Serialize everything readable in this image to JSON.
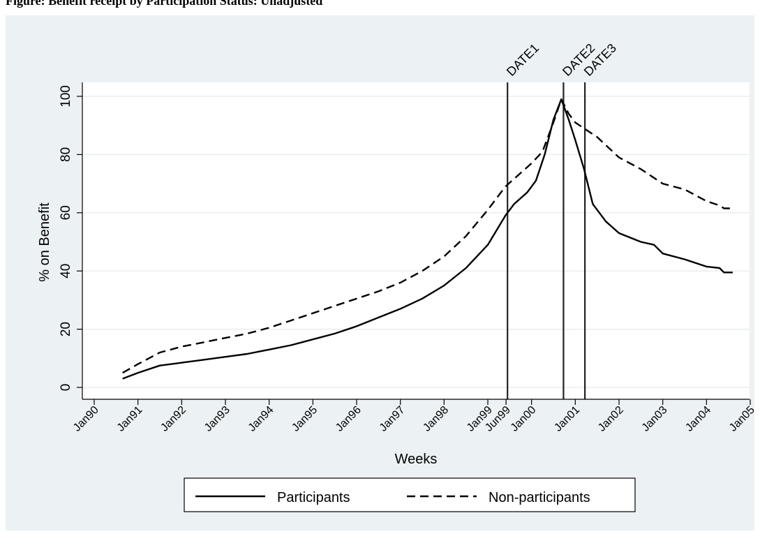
{
  "caption": "Figure: Benefit receipt by Participation Status: Unadjusted",
  "chart_data": {
    "type": "line",
    "title": "",
    "xlabel": "Weeks",
    "ylabel": "% on Benefit",
    "ylim": [
      0,
      100
    ],
    "xlim": [
      1990.0,
      2005.0
    ],
    "yticks": [
      0,
      20,
      40,
      60,
      80,
      100
    ],
    "grid": true,
    "legend_position": "bottom",
    "xticks": [
      {
        "x": 1990.0,
        "label": "Jan90"
      },
      {
        "x": 1991.0,
        "label": "Jan91"
      },
      {
        "x": 1992.0,
        "label": "Jan92"
      },
      {
        "x": 1993.0,
        "label": "Jan93"
      },
      {
        "x": 1994.0,
        "label": "Jan94"
      },
      {
        "x": 1995.0,
        "label": "Jan95"
      },
      {
        "x": 1996.0,
        "label": "Jan96"
      },
      {
        "x": 1997.0,
        "label": "Jan97"
      },
      {
        "x": 1998.0,
        "label": "Jan98"
      },
      {
        "x": 1999.0,
        "label": "Jan99"
      },
      {
        "x": 1999.4167,
        "label": "Jun99"
      },
      {
        "x": 2000.0,
        "label": "Jan00"
      },
      {
        "x": 2001.0,
        "label": "Jan01"
      },
      {
        "x": 2002.0,
        "label": "Jan02"
      },
      {
        "x": 2003.0,
        "label": "Jan03"
      },
      {
        "x": 2004.0,
        "label": "Jan04"
      },
      {
        "x": 2005.0,
        "label": "Jan05"
      }
    ],
    "vlines": [
      {
        "x": 1999.45,
        "label": "DATE1"
      },
      {
        "x": 2000.73,
        "label": "DATE2"
      },
      {
        "x": 2001.22,
        "label": "DATE3"
      }
    ],
    "series": [
      {
        "name": "Participants",
        "style": "solid",
        "color": "#000000",
        "points": [
          [
            1990.65,
            3
          ],
          [
            1991.0,
            5
          ],
          [
            1991.5,
            7.5
          ],
          [
            1992.0,
            8.5
          ],
          [
            1992.5,
            9.5
          ],
          [
            1993.0,
            10.5
          ],
          [
            1993.5,
            11.5
          ],
          [
            1994.0,
            13
          ],
          [
            1994.5,
            14.5
          ],
          [
            1995.0,
            16.5
          ],
          [
            1995.5,
            18.5
          ],
          [
            1996.0,
            21
          ],
          [
            1996.5,
            24
          ],
          [
            1997.0,
            27
          ],
          [
            1997.5,
            30.5
          ],
          [
            1998.0,
            35
          ],
          [
            1998.5,
            41
          ],
          [
            1999.0,
            49
          ],
          [
            1999.4,
            59
          ],
          [
            1999.6,
            63
          ],
          [
            1999.9,
            67
          ],
          [
            2000.1,
            71
          ],
          [
            2000.3,
            80
          ],
          [
            2000.5,
            92
          ],
          [
            2000.68,
            99
          ],
          [
            2000.85,
            92
          ],
          [
            2001.0,
            85
          ],
          [
            2001.2,
            75
          ],
          [
            2001.4,
            63
          ],
          [
            2001.7,
            57
          ],
          [
            2002.0,
            53
          ],
          [
            2002.5,
            50
          ],
          [
            2002.8,
            49
          ],
          [
            2003.0,
            46
          ],
          [
            2003.5,
            44
          ],
          [
            2004.0,
            41.5
          ],
          [
            2004.3,
            41
          ],
          [
            2004.4,
            39.5
          ],
          [
            2004.6,
            39.5
          ]
        ]
      },
      {
        "name": "Non-participants",
        "style": "dashed",
        "color": "#000000",
        "points": [
          [
            1990.65,
            5
          ],
          [
            1991.0,
            8
          ],
          [
            1991.5,
            12
          ],
          [
            1992.0,
            14
          ],
          [
            1992.5,
            15.5
          ],
          [
            1993.0,
            17
          ],
          [
            1993.5,
            18.5
          ],
          [
            1994.0,
            20.5
          ],
          [
            1994.5,
            23
          ],
          [
            1995.0,
            25.5
          ],
          [
            1995.5,
            28
          ],
          [
            1996.0,
            30.5
          ],
          [
            1996.5,
            33
          ],
          [
            1997.0,
            36
          ],
          [
            1997.5,
            40
          ],
          [
            1998.0,
            45
          ],
          [
            1998.5,
            52
          ],
          [
            1999.0,
            61
          ],
          [
            1999.4,
            69
          ],
          [
            1999.7,
            73
          ],
          [
            2000.0,
            77
          ],
          [
            2000.25,
            81
          ],
          [
            2000.5,
            91
          ],
          [
            2000.68,
            99
          ],
          [
            2000.85,
            94
          ],
          [
            2001.0,
            91
          ],
          [
            2001.5,
            86
          ],
          [
            2002.0,
            79
          ],
          [
            2002.5,
            75
          ],
          [
            2003.0,
            70
          ],
          [
            2003.5,
            68
          ],
          [
            2004.0,
            64
          ],
          [
            2004.3,
            62.5
          ],
          [
            2004.4,
            61.5
          ],
          [
            2004.6,
            61.5
          ]
        ]
      }
    ]
  }
}
